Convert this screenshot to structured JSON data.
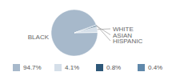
{
  "chart_data": {
    "type": "pie",
    "categories": [
      "BLACK",
      "WHITE",
      "ASIAN",
      "HISPANIC"
    ],
    "values": [
      94.7,
      4.1,
      0.8,
      0.4
    ],
    "value_labels": [
      "94.7%",
      "4.1%",
      "0.8%",
      "0.4%"
    ],
    "colors": [
      "#a7b9cb",
      "#d5dfe9",
      "#2e5879",
      "#6088aa"
    ],
    "legend": "bottom"
  }
}
